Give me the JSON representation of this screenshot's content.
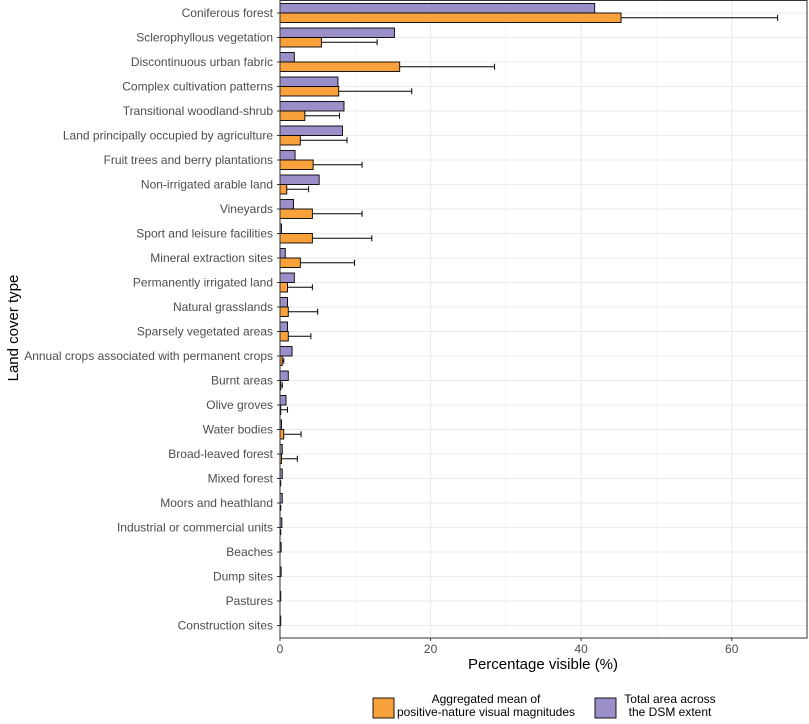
{
  "chart_data": {
    "type": "bar",
    "orientation": "horizontal",
    "title": "",
    "xlabel": "Percentage visible (%)",
    "ylabel": "Land cover type",
    "xlim": [
      0,
      70
    ],
    "xticks": [
      0,
      20,
      40,
      60
    ],
    "grid": true,
    "legend_position": "bottom",
    "categories": [
      "Coniferous forest",
      "Sclerophyllous vegetation",
      "Discontinuous urban fabric",
      "Complex cultivation patterns",
      "Transitional woodland-shrub",
      "Land principally occupied by agriculture",
      "Fruit trees and berry plantations",
      "Non-irrigated arable land",
      "Vineyards",
      "Sport and leisure facilities",
      "Mineral extraction sites",
      "Permanently irrigated land",
      "Natural grasslands",
      "Sparsely vegetated areas",
      "Annual crops associated with permanent crops",
      "Burnt areas",
      "Olive groves",
      "Water bodies",
      "Broad-leaved forest",
      "Mixed forest",
      "Moors and heathland",
      "Industrial or commercial units",
      "Beaches",
      "Dump sites",
      "Pastures",
      "Construction sites"
    ],
    "series": [
      {
        "name": "Total area across the DSM extent",
        "legend_lines": [
          "Total area across",
          "the DSM extent"
        ],
        "color": "#9b8ec9",
        "values": [
          41.8,
          15.2,
          1.9,
          7.7,
          8.5,
          8.3,
          2.0,
          5.2,
          1.8,
          0.2,
          0.7,
          1.9,
          1.0,
          1.0,
          1.6,
          1.1,
          0.8,
          0.2,
          0.3,
          0.3,
          0.3,
          0.25,
          0.15,
          0.15,
          0.1,
          0.1
        ]
      },
      {
        "name": "Aggregated mean of positive-nature visual magnitudes",
        "legend_lines": [
          "Aggregated mean of",
          "positive-nature visual magnitudes"
        ],
        "color": "#f9a13a",
        "values": [
          45.3,
          5.5,
          15.9,
          7.8,
          3.3,
          2.7,
          4.4,
          0.9,
          4.3,
          4.3,
          2.7,
          1.0,
          1.1,
          1.1,
          0.3,
          0.1,
          0.1,
          0.5,
          0.2,
          0.0,
          0.0,
          0.0,
          0.0,
          0.0,
          0.0,
          0.0
        ],
        "error_upper": [
          66.1,
          12.9,
          28.5,
          17.5,
          7.9,
          8.9,
          10.9,
          3.8,
          10.9,
          12.2,
          9.9,
          4.3,
          5.0,
          4.1,
          0.5,
          0.3,
          1.0,
          2.8,
          2.3,
          0.1,
          0.1,
          0.1,
          0.0,
          0.0,
          0.0,
          0.0
        ]
      }
    ]
  }
}
